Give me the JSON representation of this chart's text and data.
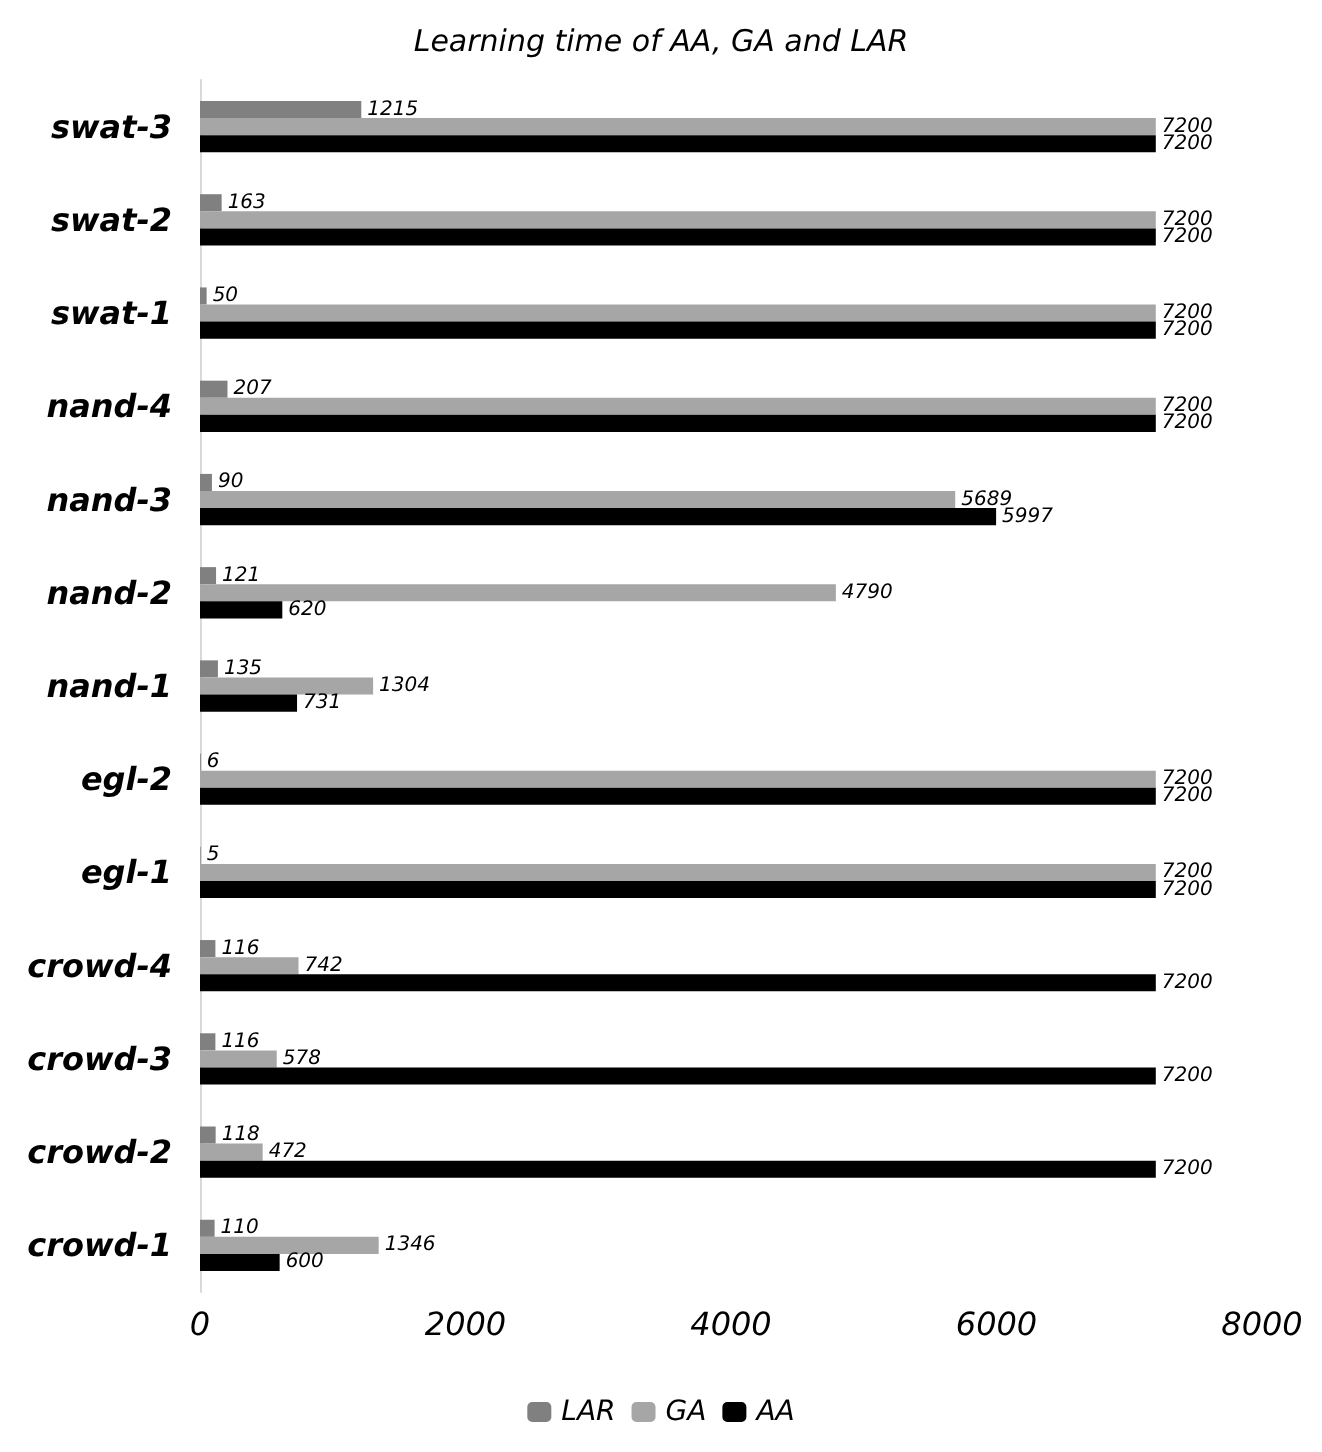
{
  "chart_data": {
    "type": "bar",
    "orientation": "horizontal",
    "title": "Learning time of AA, GA and LAR",
    "categories": [
      "swat-3",
      "swat-2",
      "swat-1",
      "nand-4",
      "nand-3",
      "nand-2",
      "nand-1",
      "egl-2",
      "egl-1",
      "crowd-4",
      "crowd-3",
      "crowd-2",
      "crowd-1"
    ],
    "series": [
      {
        "name": "LAR",
        "color": "#808080",
        "values": [
          1215,
          163,
          50,
          207,
          90,
          121,
          135,
          6,
          5,
          116,
          116,
          118,
          110
        ]
      },
      {
        "name": "GA",
        "color": "#a6a6a6",
        "values": [
          7200,
          7200,
          7200,
          7200,
          5689,
          4790,
          1304,
          7200,
          7200,
          742,
          578,
          472,
          1346
        ]
      },
      {
        "name": "AA",
        "color": "#000000",
        "values": [
          7200,
          7200,
          7200,
          7200,
          5997,
          620,
          731,
          7200,
          7200,
          7200,
          7200,
          7200,
          600
        ]
      }
    ],
    "xlim": [
      0,
      8000
    ],
    "xticks": [
      0,
      2000,
      4000,
      6000,
      8000
    ],
    "grid": false,
    "legend": "bottom",
    "data_labels": true
  }
}
